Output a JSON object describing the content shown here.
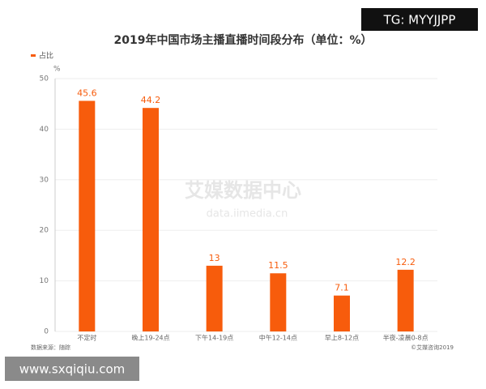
{
  "chart_data": {
    "type": "bar",
    "title": "2019年中国市场主播直播时间段分布（单位：%）",
    "y_unit": "%",
    "categories": [
      "不定时",
      "晚上19-24点",
      "下午14-19点",
      "中午12-14点",
      "早上8-12点",
      "半夜-凌晨0-8点"
    ],
    "series": [
      {
        "name": "占比",
        "color": "#f75c0c",
        "values": [
          45.6,
          44.2,
          13,
          11.5,
          7.1,
          12.2
        ]
      }
    ],
    "ylim": [
      0,
      50
    ],
    "yticks": [
      0,
      10,
      20,
      30,
      40,
      50
    ],
    "grid": true,
    "watermark": [
      "艾媒数据中心",
      "data.iimedia.cn"
    ],
    "source": "数据来源：随踪",
    "copyright": "©艾媒咨询2019"
  },
  "overlays": [
    "TG: MYYJJPP",
    "www.sxqiqiu.com"
  ]
}
